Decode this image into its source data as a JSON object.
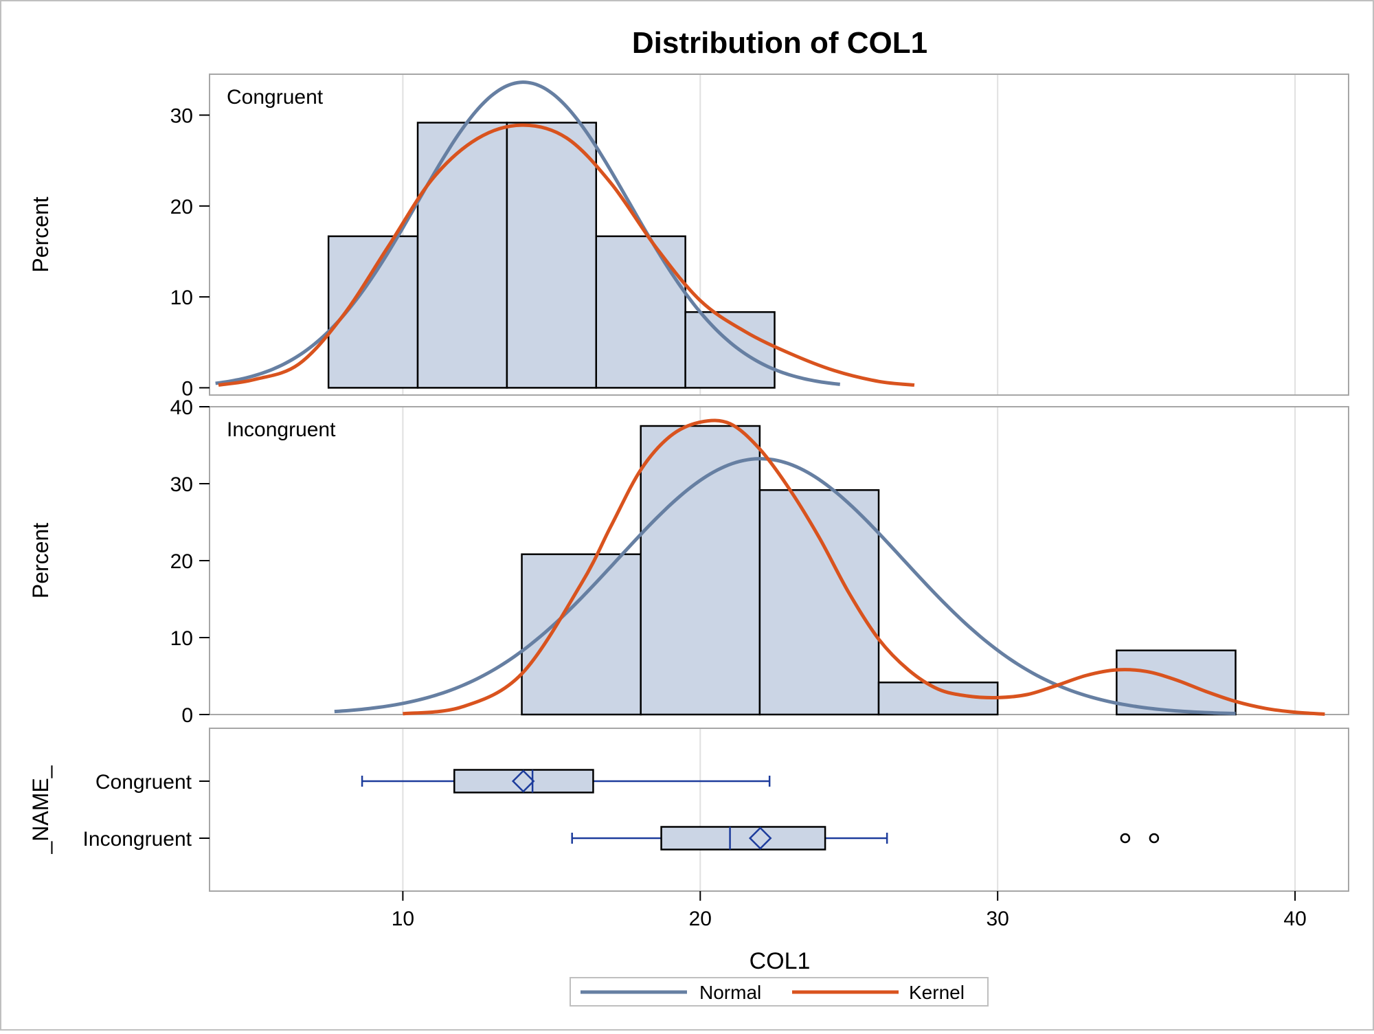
{
  "chart_data": {
    "type": "histogram_with_boxplot",
    "title": "Distribution of COL1",
    "xlabel": "COL1",
    "xlim": [
      3.5,
      41.8
    ],
    "xticks": [
      10,
      20,
      30,
      40
    ],
    "grid": true,
    "colors": {
      "bar_fill": "#CBD5E5",
      "bar_stroke": "#000000",
      "normal": "#667FA2",
      "kernel": "#D9531E",
      "box_accent": "#1D3C9C",
      "frame": "#A6A6A6",
      "grid": "#E0E0E0"
    },
    "legend": {
      "position": "bottom",
      "entries": [
        {
          "name": "Normal",
          "color": "#667FA2"
        },
        {
          "name": "Kernel",
          "color": "#D9531E"
        }
      ]
    },
    "panels": [
      {
        "label": "Congruent",
        "ylabel": "Percent",
        "ylim": [
          -0.8,
          34.5
        ],
        "yticks": [
          0,
          10,
          20,
          30
        ],
        "bins": [
          {
            "start": 7.5,
            "end": 10.5,
            "percent": 16.67
          },
          {
            "start": 10.5,
            "end": 13.5,
            "percent": 29.17
          },
          {
            "start": 13.5,
            "end": 16.5,
            "percent": 29.17
          },
          {
            "start": 16.5,
            "end": 19.5,
            "percent": 16.67
          },
          {
            "start": 19.5,
            "end": 22.5,
            "percent": 8.33
          }
        ],
        "normal": {
          "mean": 14.05,
          "sd": 3.56,
          "binwidth": 3,
          "x_range": [
            3.7,
            24.7
          ]
        },
        "kernel": {
          "x": [
            3.8,
            5,
            6.5,
            8,
            9.5,
            11,
            12.5,
            14,
            15.5,
            17,
            18.5,
            20,
            21.5,
            23,
            24.5,
            26,
            27.2
          ],
          "y": [
            0.3,
            0.9,
            2.6,
            8.0,
            15.5,
            23.0,
            27.4,
            28.9,
            27.5,
            22.5,
            15.5,
            9.6,
            6.2,
            3.8,
            1.9,
            0.7,
            0.3
          ]
        }
      },
      {
        "label": "Incongruent",
        "ylabel": "Percent",
        "ylim": [
          0,
          40
        ],
        "yticks": [
          0,
          10,
          20,
          30,
          40
        ],
        "bins": [
          {
            "start": 14,
            "end": 18,
            "percent": 20.83
          },
          {
            "start": 18,
            "end": 22,
            "percent": 37.5
          },
          {
            "start": 22,
            "end": 26,
            "percent": 29.17
          },
          {
            "start": 26,
            "end": 30,
            "percent": 4.17
          },
          {
            "start": 30,
            "end": 34,
            "percent": 0
          },
          {
            "start": 34,
            "end": 38,
            "percent": 8.33
          }
        ],
        "normal": {
          "mean": 22.02,
          "sd": 4.8,
          "binwidth": 4,
          "x_range": [
            7.7,
            38
          ]
        },
        "kernel": {
          "x": [
            10,
            12,
            14,
            16,
            17,
            18,
            19,
            20,
            21,
            22,
            23,
            24,
            25,
            26,
            27,
            28,
            29,
            30,
            31,
            32,
            33,
            34,
            35,
            36,
            37,
            38,
            39,
            40,
            41
          ],
          "y": [
            0.1,
            1.0,
            5.3,
            17.0,
            24.5,
            31.8,
            36.2,
            38.0,
            37.8,
            34.5,
            29.3,
            23.0,
            15.8,
            9.8,
            5.8,
            3.3,
            2.4,
            2.2,
            2.6,
            3.8,
            5.1,
            5.8,
            5.6,
            4.5,
            3.0,
            1.7,
            0.8,
            0.3,
            0.05
          ]
        }
      }
    ],
    "box_panel": {
      "ylabel": "_NAME_",
      "boxes": [
        {
          "name": "Congruent",
          "whisker_low": 8.63,
          "q1": 11.73,
          "median": 14.36,
          "q3": 16.4,
          "whisker_high": 22.33,
          "mean": 14.05,
          "outliers": []
        },
        {
          "name": "Incongruent",
          "whisker_low": 15.69,
          "q1": 18.69,
          "median": 21.0,
          "q3": 24.2,
          "whisker_high": 26.28,
          "mean": 22.02,
          "outliers": [
            34.29,
            35.26
          ]
        }
      ]
    }
  }
}
